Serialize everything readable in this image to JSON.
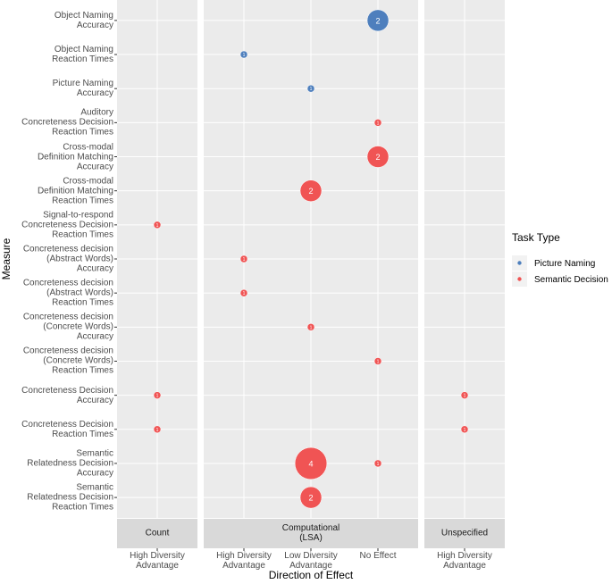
{
  "chart_data": {
    "type": "bubble",
    "x_label": "Direction of Effect",
    "y_label": "Measure",
    "legend_title": "Task Type",
    "legend_position": "right",
    "grid": true,
    "measures": [
      "Object Naming\nAccuracy",
      "Object Naming\nReaction Times",
      "Picture Naming\nAccuracy",
      "Auditory\nConcreteness Decision\nReaction Times",
      "Cross-modal\nDefinition Matching\nAccuracy",
      "Cross-modal\nDefinition Matching\nReaction Times",
      "Signal-to-respond\nConcreteness Decision\nReaction Times",
      "Concreteness decision\n(Abstract Words)\nAccuracy",
      "Concreteness decision\n(Abstract Words)\nReaction Times",
      "Concreteness decision\n(Concrete Words)\nAccuracy",
      "Concreteness decision\n(Concrete Words)\nReaction Times",
      "Concreteness Decision\nAccuracy",
      "Concreteness Decision\nReaction Times",
      "Semantic\nRelatedness Decision\nAccuracy",
      "Semantic\nRelatedness Decision\nReaction Times"
    ],
    "facets": [
      {
        "name": "Count",
        "categories": [
          "High Diversity\nAdvantage"
        ]
      },
      {
        "name": "Computational\n(LSA)",
        "categories": [
          "High Diversity\nAdvantage",
          "Low Diversity\nAdvantage",
          "No Effect"
        ]
      },
      {
        "name": "Unspecified",
        "categories": [
          "High Diversity\nAdvantage"
        ]
      }
    ],
    "series": [
      {
        "name": "Picture Naming",
        "color": "#4e7fbd",
        "measures": [
          "Object Naming\nAccuracy",
          "Object Naming\nReaction Times",
          "Picture Naming\nAccuracy"
        ],
        "facets": [
          "Computational\n(LSA)",
          "Computational\n(LSA)",
          "Computational\n(LSA)"
        ],
        "effects": [
          "No Effect",
          "High Diversity\nAdvantage",
          "Low Diversity\nAdvantage"
        ],
        "values": [
          2,
          1,
          1
        ]
      },
      {
        "name": "Semantic Decision",
        "color": "#f05454",
        "measures": [
          "Auditory\nConcreteness Decision\nReaction Times",
          "Cross-modal\nDefinition Matching\nAccuracy",
          "Cross-modal\nDefinition Matching\nReaction Times",
          "Signal-to-respond\nConcreteness Decision\nReaction Times",
          "Concreteness decision\n(Abstract Words)\nAccuracy",
          "Concreteness decision\n(Abstract Words)\nReaction Times",
          "Concreteness decision\n(Concrete Words)\nAccuracy",
          "Concreteness decision\n(Concrete Words)\nReaction Times",
          "Concreteness Decision\nAccuracy",
          "Concreteness Decision\nAccuracy",
          "Concreteness Decision\nReaction Times",
          "Concreteness Decision\nReaction Times",
          "Semantic\nRelatedness Decision\nAccuracy",
          "Semantic\nRelatedness Decision\nAccuracy",
          "Semantic\nRelatedness Decision\nReaction Times"
        ],
        "facets": [
          "Computational\n(LSA)",
          "Computational\n(LSA)",
          "Computational\n(LSA)",
          "Count",
          "Computational\n(LSA)",
          "Computational\n(LSA)",
          "Computational\n(LSA)",
          "Computational\n(LSA)",
          "Count",
          "Unspecified",
          "Count",
          "Unspecified",
          "Computational\n(LSA)",
          "Computational\n(LSA)",
          "Computational\n(LSA)"
        ],
        "effects": [
          "No Effect",
          "No Effect",
          "Low Diversity\nAdvantage",
          "High Diversity\nAdvantage",
          "High Diversity\nAdvantage",
          "High Diversity\nAdvantage",
          "Low Diversity\nAdvantage",
          "No Effect",
          "High Diversity\nAdvantage",
          "High Diversity\nAdvantage",
          "High Diversity\nAdvantage",
          "High Diversity\nAdvantage",
          "Low Diversity\nAdvantage",
          "No Effect",
          "Low Diversity\nAdvantage"
        ],
        "values": [
          1,
          2,
          2,
          1,
          1,
          1,
          1,
          1,
          1,
          1,
          1,
          1,
          4,
          1,
          2
        ]
      }
    ]
  }
}
